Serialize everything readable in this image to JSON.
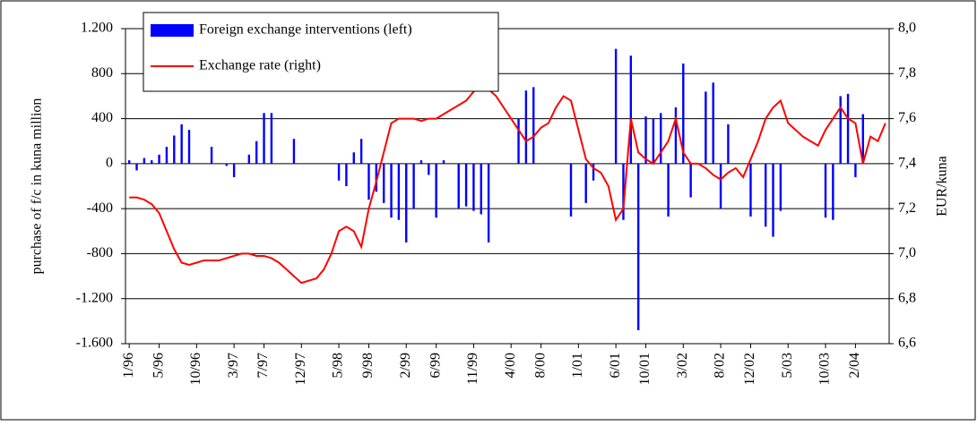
{
  "chart_data": {
    "type": "bar-line",
    "ylabel": "purchase of f/c in kuna million",
    "y2label": "EUR/kuna",
    "categories": [
      "1/96",
      null,
      null,
      null,
      "5/96",
      null,
      null,
      null,
      null,
      "10/96",
      null,
      null,
      null,
      null,
      "3/97",
      null,
      null,
      null,
      "7/97",
      null,
      null,
      null,
      null,
      "12/97",
      null,
      null,
      null,
      null,
      "5/98",
      null,
      null,
      null,
      "9/98",
      null,
      null,
      null,
      null,
      "2/99",
      null,
      null,
      null,
      "6/99",
      null,
      null,
      null,
      null,
      "11/99",
      null,
      null,
      null,
      null,
      "4/00",
      null,
      null,
      null,
      "8/00",
      null,
      null,
      null,
      null,
      "1/01",
      null,
      null,
      null,
      null,
      "6/01",
      null,
      null,
      null,
      "10/01",
      null,
      null,
      null,
      null,
      "3/02",
      null,
      null,
      null,
      null,
      "8/02",
      null,
      null,
      null,
      "12/02",
      null,
      null,
      null,
      null,
      "5/03",
      null,
      null,
      null,
      null,
      "10/03",
      null,
      null,
      null,
      "2/04",
      null,
      null,
      null,
      null
    ],
    "series": [
      {
        "name": "Foreign exchange interventions (left)",
        "color": "#0000ff",
        "axis": "y",
        "values": [
          30,
          -60,
          50,
          30,
          80,
          150,
          250,
          350,
          300,
          0,
          0,
          150,
          0,
          -20,
          -120,
          0,
          80,
          200,
          450,
          450,
          0,
          0,
          220,
          0,
          0,
          0,
          0,
          0,
          -150,
          -200,
          100,
          220,
          -320,
          -250,
          -350,
          -480,
          -500,
          -700,
          -400,
          30,
          -100,
          -480,
          30,
          0,
          -400,
          -380,
          -420,
          -450,
          -700,
          0,
          0,
          0,
          400,
          650,
          680,
          0,
          0,
          0,
          0,
          -470,
          0,
          -350,
          -150,
          0,
          0,
          1020,
          -500,
          960,
          -1480,
          420,
          400,
          450,
          -470,
          500,
          890,
          -300,
          0,
          640,
          720,
          -400,
          350,
          0,
          0,
          -470,
          0,
          -560,
          -650,
          -420,
          0,
          0,
          0,
          0,
          0,
          -480,
          -500,
          600,
          620,
          -120,
          440,
          0,
          0,
          0
        ]
      },
      {
        "name": "Exchange rate (right)",
        "color": "#ff0000",
        "axis": "y2",
        "values": [
          7.25,
          7.25,
          7.24,
          7.22,
          7.18,
          7.1,
          7.02,
          6.96,
          6.95,
          6.96,
          6.97,
          6.97,
          6.97,
          6.98,
          6.99,
          7.0,
          7.0,
          6.99,
          6.99,
          6.98,
          6.96,
          6.93,
          6.9,
          6.87,
          6.88,
          6.89,
          6.93,
          7.0,
          7.1,
          7.12,
          7.1,
          7.03,
          7.2,
          7.32,
          7.45,
          7.58,
          7.6,
          7.6,
          7.6,
          7.59,
          7.6,
          7.6,
          7.62,
          7.64,
          7.66,
          7.68,
          7.72,
          7.74,
          7.73,
          7.7,
          7.65,
          7.6,
          7.55,
          7.5,
          7.52,
          7.56,
          7.58,
          7.65,
          7.7,
          7.68,
          7.55,
          7.42,
          7.38,
          7.36,
          7.3,
          7.15,
          7.2,
          7.6,
          7.45,
          7.42,
          7.4,
          7.45,
          7.5,
          7.6,
          7.45,
          7.4,
          7.4,
          7.38,
          7.35,
          7.33,
          7.36,
          7.38,
          7.34,
          7.42,
          7.5,
          7.6,
          7.65,
          7.68,
          7.58,
          7.55,
          7.52,
          7.5,
          7.48,
          7.55,
          7.6,
          7.65,
          7.6,
          7.58,
          7.4,
          7.52,
          7.5,
          7.58
        ]
      }
    ],
    "ylim": [
      -1600,
      1200
    ],
    "yticks": [
      {
        "value": -1600,
        "label": "-1.600"
      },
      {
        "value": -1200,
        "label": "-1.200"
      },
      -800,
      -400,
      0,
      400,
      800,
      {
        "value": 1200,
        "label": "1.200"
      }
    ],
    "y2lim": [
      6.6,
      8.0
    ],
    "y2ticks": [
      {
        "value": 6.6,
        "label": "6,6"
      },
      {
        "value": 6.8,
        "label": "6,8"
      },
      {
        "value": 7.0,
        "label": "7,0"
      },
      {
        "value": 7.2,
        "label": "7,2"
      },
      {
        "value": 7.4,
        "label": "7,4"
      },
      {
        "value": 7.6,
        "label": "7,6"
      },
      {
        "value": 7.8,
        "label": "7,8"
      },
      {
        "value": 8.0,
        "label": "8,0"
      }
    ],
    "grid": true,
    "legend": "upper left"
  }
}
